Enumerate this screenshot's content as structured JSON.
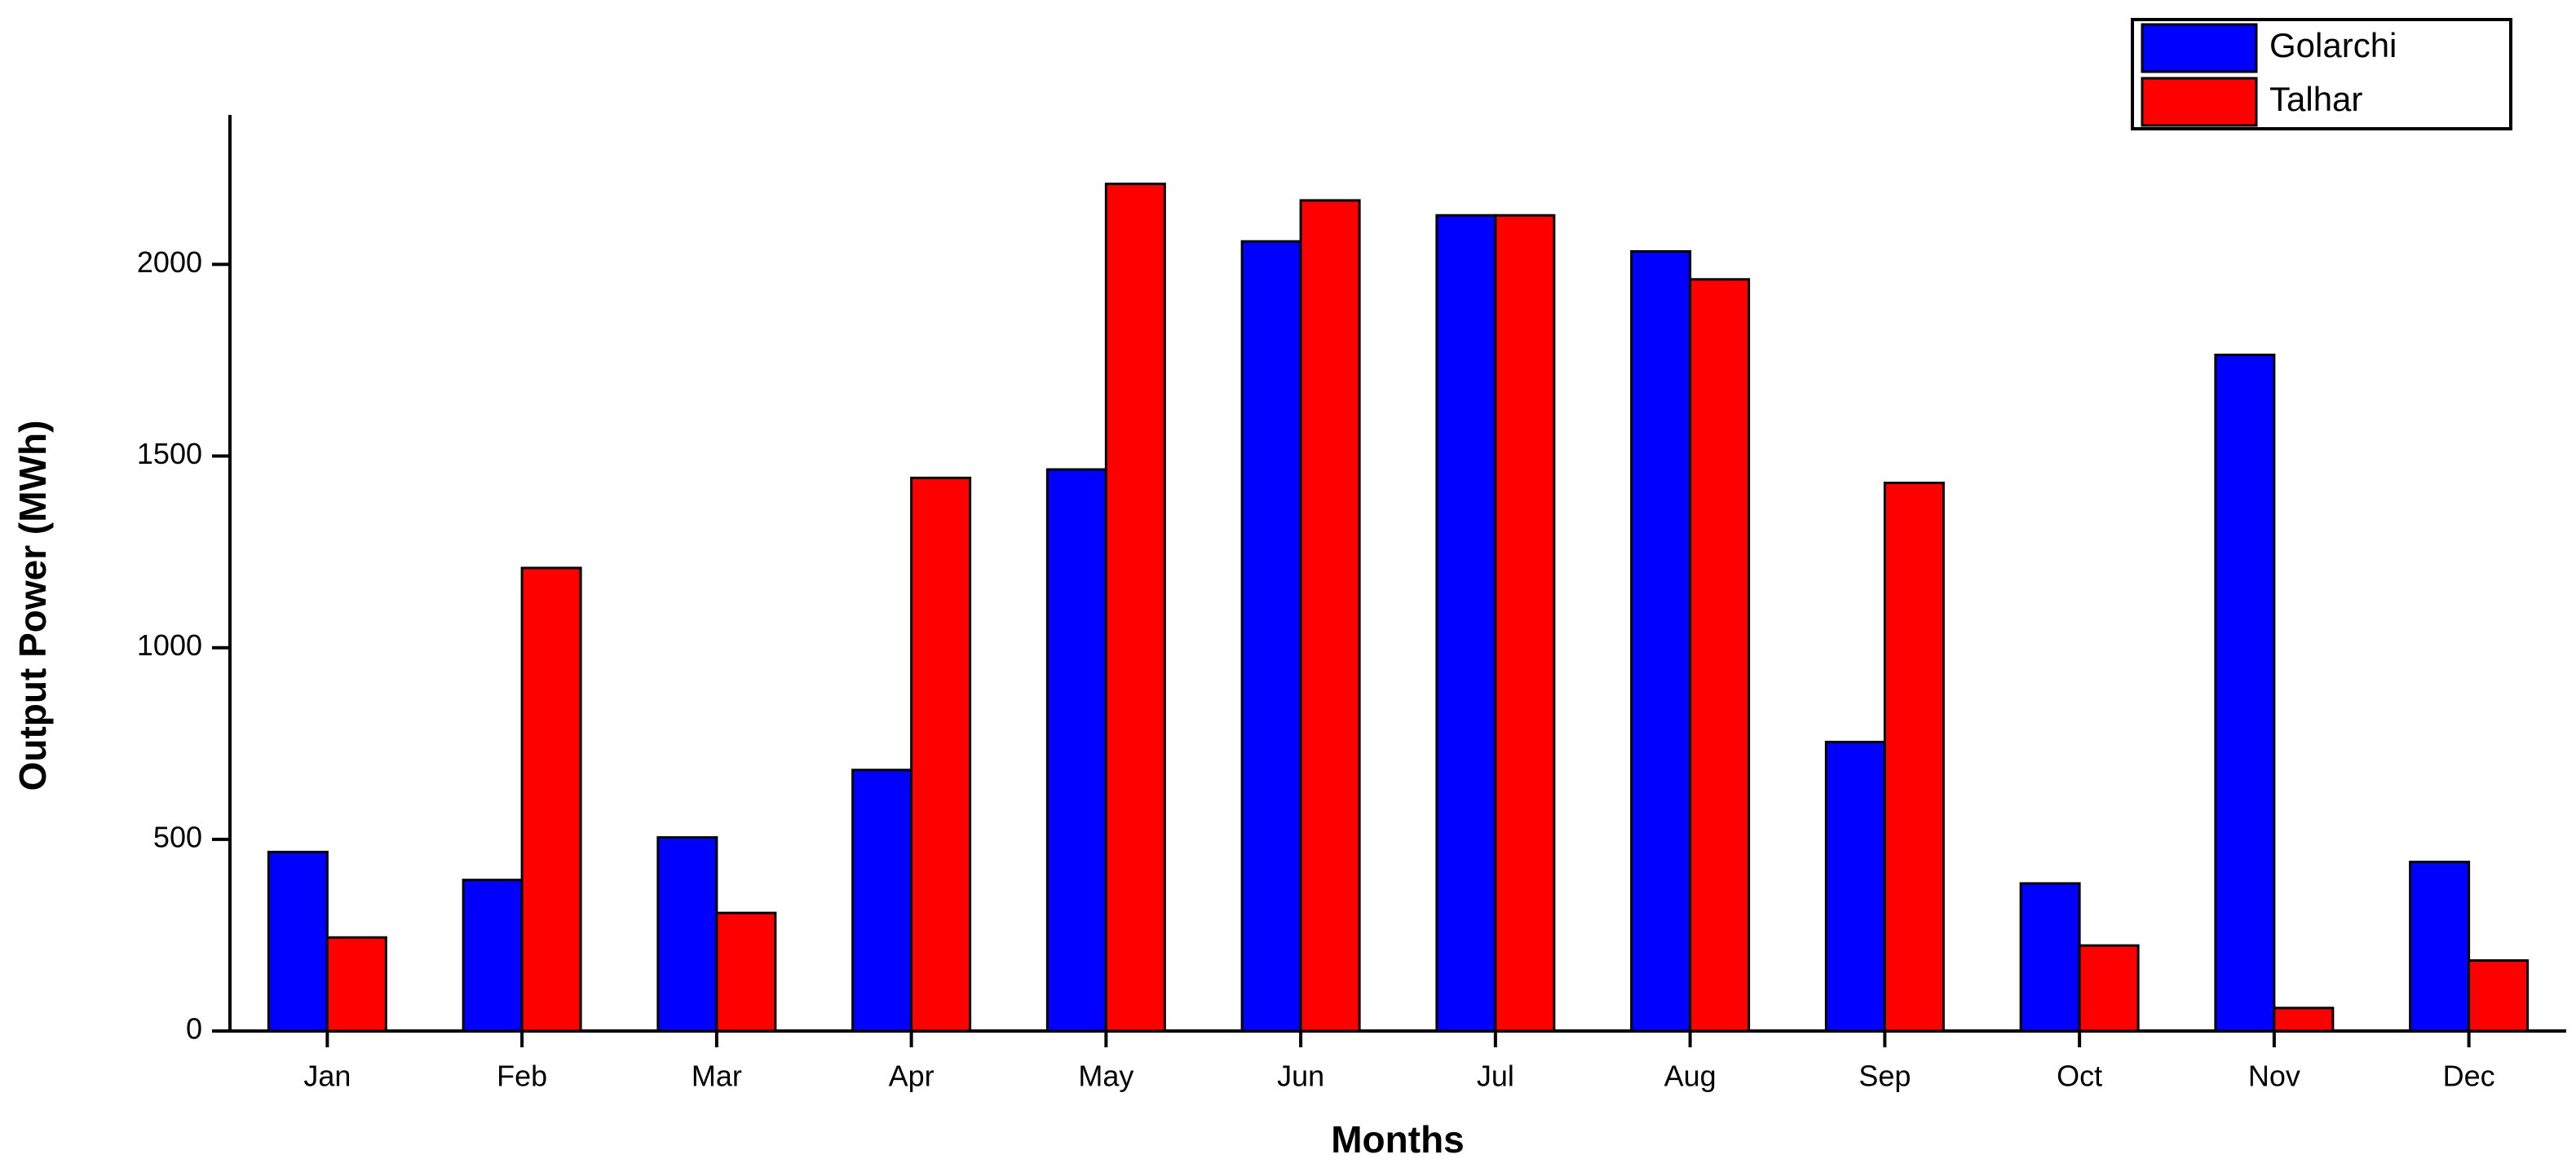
{
  "chart_data": {
    "type": "bar",
    "x_label": "Months",
    "y_label": "Output Power (MWh)",
    "categories": [
      "Jan",
      "Feb",
      "Mar",
      "Apr",
      "May",
      "Jun",
      "Jul",
      "Aug",
      "Sep",
      "Oct",
      "Nov",
      "Dec"
    ],
    "series": [
      {
        "name": "Golarchi",
        "color": "#0000ff",
        "values": [
          467,
          394,
          505,
          681,
          1465,
          2060,
          2128,
          2034,
          754,
          385,
          1764,
          441
        ]
      },
      {
        "name": "Talhar",
        "color": "#ff0000",
        "values": [
          244,
          1208,
          308,
          1443,
          2210,
          2167,
          2128,
          1961,
          1430,
          223,
          60,
          184
        ]
      }
    ],
    "ylim": [
      0,
      2390
    ],
    "yticks": [
      0,
      500,
      1000,
      1500,
      2000
    ],
    "grid": false,
    "legend": "upper right"
  }
}
